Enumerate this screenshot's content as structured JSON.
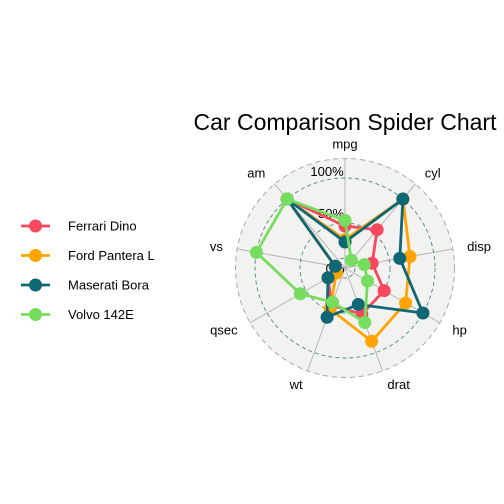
{
  "chart_data": {
    "type": "radar",
    "title": "Car Comparison Spider Chart",
    "axes": [
      "mpg",
      "cyl",
      "disp",
      "hp",
      "drat",
      "wt",
      "qsec",
      "vs",
      "am"
    ],
    "grid_labels": [
      "0%",
      "50%",
      "100%"
    ],
    "range": [
      0,
      1
    ],
    "legend_position": "left",
    "series": [
      {
        "name": "Ferrari Dino",
        "color": "#F8485E",
        "values": [
          0.4,
          0.5,
          0.22,
          0.44,
          0.49,
          0.37,
          0.12,
          0.0,
          1.0
        ]
      },
      {
        "name": "Ford Pantera L",
        "color": "#FFA400",
        "values": [
          0.23,
          1.0,
          0.7,
          0.75,
          0.85,
          0.42,
          0.0,
          0.0,
          1.0
        ]
      },
      {
        "name": "Maserati Bora",
        "color": "#0F6674",
        "values": [
          0.2,
          1.0,
          0.57,
          1.0,
          0.36,
          0.53,
          0.12,
          0.0,
          1.0
        ]
      },
      {
        "name": "Volvo 142E",
        "color": "#77DD5E",
        "values": [
          0.47,
          0.0,
          0.12,
          0.2,
          0.6,
          0.33,
          0.52,
          1.0,
          1.0
        ]
      }
    ]
  }
}
